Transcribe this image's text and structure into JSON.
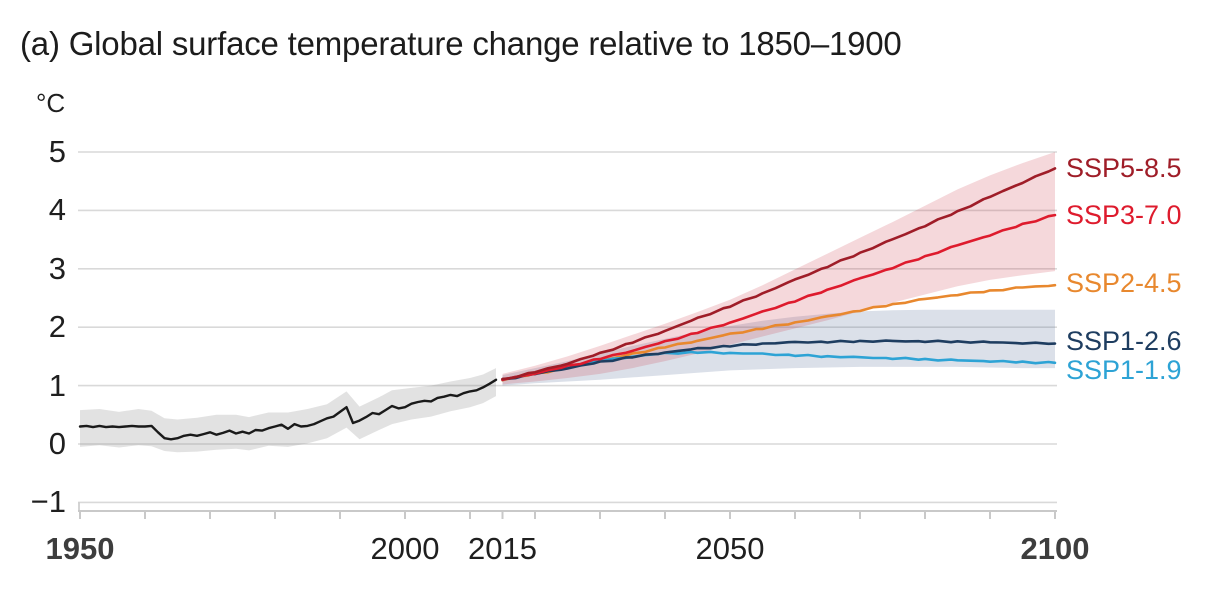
{
  "title": "(a) Global surface temperature change relative to 1850–1900",
  "unit_label": "°C",
  "colors": {
    "background": "#ffffff",
    "title_text": "#1c1c1c",
    "tick_text": "#1f1f1f",
    "tick_text_bold": "#3d3d3d",
    "gridline": "#d9d9d9",
    "axis_line": "#c9c9c9",
    "historical_line": "#1a1a1a",
    "historical_band": "rgba(125,125,125,0.22)",
    "ssp585_line": "#9f1d28",
    "ssp370_line": "#de1b2d",
    "ssp370_band": "rgba(205,60,75,0.20)",
    "ssp245_line": "#e8882e",
    "ssp126_line": "#1e3d60",
    "ssp126_band": "rgba(90,115,155,0.22)",
    "ssp119_line": "#2da3d5"
  },
  "chart_data": {
    "type": "line",
    "title": "(a) Global surface temperature change relative to 1850–1900",
    "ylabel": "°C",
    "xlabel": "",
    "xlim": [
      1950,
      2100
    ],
    "ylim": [
      -1,
      5
    ],
    "grid": "horizontal-only",
    "legend_position": "right-of-line-ends",
    "y_ticks": [
      {
        "label": "5",
        "value": 5
      },
      {
        "label": "4",
        "value": 4
      },
      {
        "label": "3",
        "value": 3
      },
      {
        "label": "2",
        "value": 2
      },
      {
        "label": "1",
        "value": 1
      },
      {
        "label": "0",
        "value": 0
      },
      {
        "label": "−1",
        "value": -1
      }
    ],
    "x_ticks_labeled": [
      {
        "label": "1950",
        "year": 1950,
        "bold": true
      },
      {
        "label": "2000",
        "year": 2000,
        "bold": false
      },
      {
        "label": "2015",
        "year": 2015,
        "bold": false
      },
      {
        "label": "2050",
        "year": 2050,
        "bold": false
      },
      {
        "label": "2100",
        "year": 2100,
        "bold": true
      }
    ],
    "x_ticks_minor": [
      1950,
      1960,
      1970,
      1980,
      1990,
      2000,
      2010,
      2015,
      2020,
      2030,
      2040,
      2050,
      2060,
      2070,
      2080,
      2090,
      2100
    ],
    "historical": {
      "name": "Historical",
      "color": "#1a1a1a",
      "band_color": "rgba(125,125,125,0.22)",
      "points": [
        [
          1950,
          0.3
        ],
        [
          1951,
          0.31
        ],
        [
          1952,
          0.29
        ],
        [
          1953,
          0.31
        ],
        [
          1954,
          0.29
        ],
        [
          1955,
          0.3
        ],
        [
          1956,
          0.29
        ],
        [
          1957,
          0.3
        ],
        [
          1958,
          0.31
        ],
        [
          1959,
          0.3
        ],
        [
          1960,
          0.3
        ],
        [
          1961,
          0.31
        ],
        [
          1962,
          0.2
        ],
        [
          1963,
          0.1
        ],
        [
          1964,
          0.08
        ],
        [
          1965,
          0.1
        ],
        [
          1966,
          0.14
        ],
        [
          1967,
          0.16
        ],
        [
          1968,
          0.14
        ],
        [
          1969,
          0.17
        ],
        [
          1970,
          0.2
        ],
        [
          1971,
          0.16
        ],
        [
          1972,
          0.19
        ],
        [
          1973,
          0.23
        ],
        [
          1974,
          0.18
        ],
        [
          1975,
          0.21
        ],
        [
          1976,
          0.18
        ],
        [
          1977,
          0.24
        ],
        [
          1978,
          0.23
        ],
        [
          1979,
          0.27
        ],
        [
          1980,
          0.3
        ],
        [
          1981,
          0.33
        ],
        [
          1982,
          0.26
        ],
        [
          1983,
          0.34
        ],
        [
          1984,
          0.3
        ],
        [
          1985,
          0.31
        ],
        [
          1986,
          0.34
        ],
        [
          1987,
          0.39
        ],
        [
          1988,
          0.44
        ],
        [
          1989,
          0.47
        ],
        [
          1990,
          0.55
        ],
        [
          1991,
          0.63
        ],
        [
          1992,
          0.36
        ],
        [
          1993,
          0.4
        ],
        [
          1994,
          0.46
        ],
        [
          1995,
          0.53
        ],
        [
          1996,
          0.51
        ],
        [
          1997,
          0.58
        ],
        [
          1998,
          0.65
        ],
        [
          1999,
          0.61
        ],
        [
          2000,
          0.63
        ],
        [
          2001,
          0.69
        ],
        [
          2002,
          0.72
        ],
        [
          2003,
          0.74
        ],
        [
          2004,
          0.73
        ],
        [
          2005,
          0.79
        ],
        [
          2006,
          0.81
        ],
        [
          2007,
          0.84
        ],
        [
          2008,
          0.82
        ],
        [
          2009,
          0.87
        ],
        [
          2010,
          0.9
        ],
        [
          2011,
          0.92
        ],
        [
          2012,
          0.97
        ],
        [
          2013,
          1.03
        ],
        [
          2014,
          1.1
        ]
      ],
      "band": [
        [
          1950,
          -0.05,
          0.58
        ],
        [
          1953,
          -0.02,
          0.6
        ],
        [
          1956,
          -0.06,
          0.55
        ],
        [
          1959,
          -0.02,
          0.6
        ],
        [
          1961,
          -0.04,
          0.57
        ],
        [
          1963,
          -0.12,
          0.44
        ],
        [
          1965,
          -0.14,
          0.42
        ],
        [
          1968,
          -0.13,
          0.45
        ],
        [
          1971,
          -0.1,
          0.5
        ],
        [
          1974,
          -0.08,
          0.5
        ],
        [
          1976,
          -0.11,
          0.46
        ],
        [
          1979,
          -0.03,
          0.54
        ],
        [
          1982,
          -0.05,
          0.54
        ],
        [
          1985,
          0.01,
          0.6
        ],
        [
          1988,
          0.1,
          0.68
        ],
        [
          1991,
          0.28,
          0.9
        ],
        [
          1993,
          0.08,
          0.64
        ],
        [
          1996,
          0.24,
          0.8
        ],
        [
          1998,
          0.34,
          0.92
        ],
        [
          2001,
          0.42,
          0.96
        ],
        [
          2004,
          0.47,
          1.0
        ],
        [
          2007,
          0.56,
          1.07
        ],
        [
          2010,
          0.63,
          1.13
        ],
        [
          2012,
          0.7,
          1.19
        ],
        [
          2014,
          0.82,
          1.3
        ]
      ]
    },
    "series": [
      {
        "name": "SSP5-8.5",
        "color": "#9f1d28",
        "points": [
          [
            2015,
            1.1
          ],
          [
            2020,
            1.23
          ],
          [
            2025,
            1.38
          ],
          [
            2030,
            1.55
          ],
          [
            2035,
            1.74
          ],
          [
            2040,
            1.94
          ],
          [
            2045,
            2.15
          ],
          [
            2050,
            2.36
          ],
          [
            2055,
            2.58
          ],
          [
            2060,
            2.81
          ],
          [
            2065,
            3.04
          ],
          [
            2070,
            3.27
          ],
          [
            2075,
            3.5
          ],
          [
            2080,
            3.74
          ],
          [
            2085,
            3.98
          ],
          [
            2090,
            4.23
          ],
          [
            2095,
            4.48
          ],
          [
            2100,
            4.72
          ]
        ]
      },
      {
        "name": "SSP3-7.0",
        "color": "#de1b2d",
        "band_color": "rgba(205,60,75,0.20)",
        "points": [
          [
            2015,
            1.1
          ],
          [
            2020,
            1.21
          ],
          [
            2025,
            1.33
          ],
          [
            2030,
            1.46
          ],
          [
            2035,
            1.6
          ],
          [
            2040,
            1.75
          ],
          [
            2045,
            1.91
          ],
          [
            2050,
            2.08
          ],
          [
            2055,
            2.26
          ],
          [
            2060,
            2.45
          ],
          [
            2065,
            2.64
          ],
          [
            2070,
            2.83
          ],
          [
            2075,
            3.02
          ],
          [
            2080,
            3.21
          ],
          [
            2085,
            3.4
          ],
          [
            2090,
            3.58
          ],
          [
            2095,
            3.76
          ],
          [
            2100,
            3.92
          ]
        ],
        "band": [
          [
            2015,
            1.02,
            1.2
          ],
          [
            2020,
            1.07,
            1.34
          ],
          [
            2025,
            1.13,
            1.5
          ],
          [
            2030,
            1.2,
            1.68
          ],
          [
            2035,
            1.3,
            1.87
          ],
          [
            2040,
            1.42,
            2.06
          ],
          [
            2045,
            1.55,
            2.26
          ],
          [
            2050,
            1.7,
            2.47
          ],
          [
            2055,
            1.84,
            2.72
          ],
          [
            2060,
            1.98,
            2.99
          ],
          [
            2065,
            2.12,
            3.26
          ],
          [
            2070,
            2.27,
            3.53
          ],
          [
            2075,
            2.42,
            3.8
          ],
          [
            2080,
            2.56,
            4.08
          ],
          [
            2085,
            2.7,
            4.36
          ],
          [
            2090,
            2.81,
            4.6
          ],
          [
            2095,
            2.89,
            4.81
          ],
          [
            2100,
            2.96,
            5.0
          ]
        ]
      },
      {
        "name": "SSP2-4.5",
        "color": "#e8882e",
        "points": [
          [
            2015,
            1.1
          ],
          [
            2020,
            1.2
          ],
          [
            2025,
            1.3
          ],
          [
            2030,
            1.42
          ],
          [
            2035,
            1.54
          ],
          [
            2040,
            1.66
          ],
          [
            2045,
            1.77
          ],
          [
            2050,
            1.88
          ],
          [
            2055,
            1.98
          ],
          [
            2060,
            2.08
          ],
          [
            2065,
            2.18
          ],
          [
            2070,
            2.29
          ],
          [
            2075,
            2.39
          ],
          [
            2080,
            2.48
          ],
          [
            2085,
            2.56
          ],
          [
            2090,
            2.62
          ],
          [
            2095,
            2.68
          ],
          [
            2100,
            2.72
          ]
        ]
      },
      {
        "name": "SSP1-2.6",
        "color": "#1e3d60",
        "band_color": "rgba(90,115,155,0.22)",
        "points": [
          [
            2015,
            1.1
          ],
          [
            2020,
            1.2
          ],
          [
            2025,
            1.3
          ],
          [
            2030,
            1.4
          ],
          [
            2035,
            1.49
          ],
          [
            2040,
            1.57
          ],
          [
            2045,
            1.63
          ],
          [
            2050,
            1.68
          ],
          [
            2055,
            1.72
          ],
          [
            2060,
            1.74
          ],
          [
            2065,
            1.75
          ],
          [
            2070,
            1.76
          ],
          [
            2075,
            1.76
          ],
          [
            2080,
            1.76
          ],
          [
            2085,
            1.75
          ],
          [
            2090,
            1.74
          ],
          [
            2095,
            1.73
          ],
          [
            2100,
            1.72
          ]
        ],
        "band": [
          [
            2015,
            1.0,
            1.18
          ],
          [
            2020,
            1.04,
            1.3
          ],
          [
            2025,
            1.07,
            1.42
          ],
          [
            2030,
            1.1,
            1.55
          ],
          [
            2035,
            1.14,
            1.68
          ],
          [
            2040,
            1.18,
            1.8
          ],
          [
            2045,
            1.22,
            1.92
          ],
          [
            2050,
            1.26,
            2.02
          ],
          [
            2055,
            1.28,
            2.11
          ],
          [
            2060,
            1.3,
            2.18
          ],
          [
            2065,
            1.31,
            2.23
          ],
          [
            2070,
            1.32,
            2.27
          ],
          [
            2075,
            1.32,
            2.29
          ],
          [
            2080,
            1.32,
            2.3
          ],
          [
            2085,
            1.32,
            2.3
          ],
          [
            2090,
            1.31,
            2.3
          ],
          [
            2095,
            1.3,
            2.3
          ],
          [
            2100,
            1.3,
            2.3
          ]
        ]
      },
      {
        "name": "SSP1-1.9",
        "color": "#2da3d5",
        "points": [
          [
            2015,
            1.1
          ],
          [
            2020,
            1.21
          ],
          [
            2025,
            1.32
          ],
          [
            2030,
            1.42
          ],
          [
            2035,
            1.5
          ],
          [
            2040,
            1.55
          ],
          [
            2045,
            1.57
          ],
          [
            2050,
            1.56
          ],
          [
            2055,
            1.54
          ],
          [
            2060,
            1.52
          ],
          [
            2065,
            1.5
          ],
          [
            2070,
            1.48
          ],
          [
            2075,
            1.47
          ],
          [
            2080,
            1.45
          ],
          [
            2085,
            1.43
          ],
          [
            2090,
            1.42
          ],
          [
            2095,
            1.4
          ],
          [
            2100,
            1.39
          ]
        ]
      }
    ],
    "legend": [
      {
        "label": "SSP5-8.5",
        "color": "#9f1d28"
      },
      {
        "label": "SSP3-7.0",
        "color": "#de1b2d"
      },
      {
        "label": "SSP2-4.5",
        "color": "#e8882e"
      },
      {
        "label": "SSP1-2.6",
        "color": "#1e3d60"
      },
      {
        "label": "SSP1-1.9",
        "color": "#2da3d5"
      }
    ]
  }
}
